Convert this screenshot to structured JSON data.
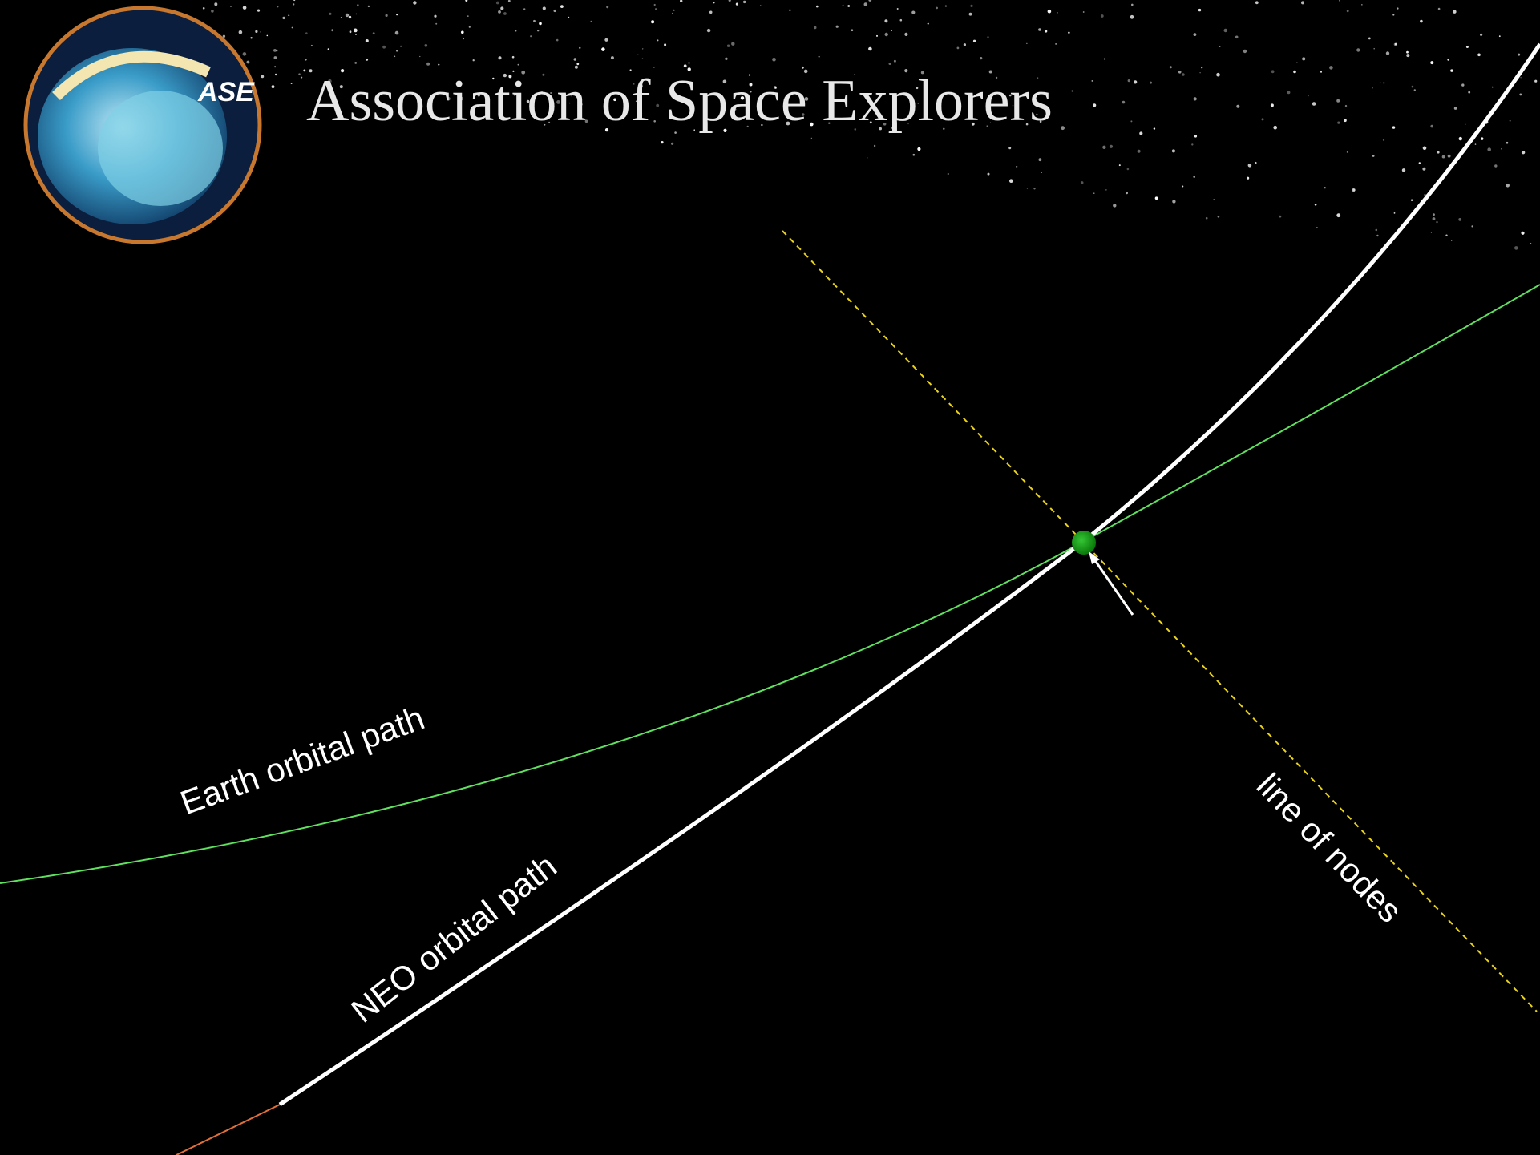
{
  "logo": {
    "label": "ASE"
  },
  "header": {
    "title": "Association of Space Explorers"
  },
  "labels": {
    "earth_orbit": "Earth orbital path",
    "neo_orbit": "NEO orbital path",
    "line_of_nodes": "line of nodes"
  }
}
